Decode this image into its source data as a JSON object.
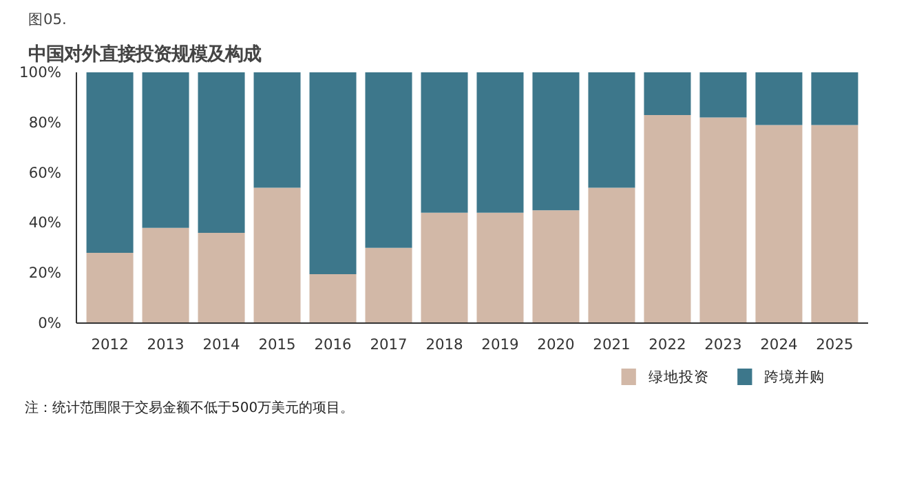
{
  "chart_data": {
    "type": "bar",
    "stacked": true,
    "title": "中国对外直接投资规模及构成",
    "subtitle": "图05.",
    "categories": [
      "2012",
      "2013",
      "2014",
      "2015",
      "2016",
      "2017",
      "2018",
      "2019",
      "2020",
      "2021",
      "2022",
      "2023",
      "2024",
      "2025"
    ],
    "series": [
      {
        "name": "绿地投资",
        "color": "#d2b8a7",
        "values": [
          28,
          38,
          36,
          54,
          19.5,
          30,
          44,
          44,
          45,
          54,
          83,
          82,
          79,
          79
        ]
      },
      {
        "name": "跨境并购",
        "color": "#3d778b",
        "values": [
          72,
          62,
          64,
          46,
          80.5,
          70,
          56,
          56,
          55,
          46,
          17,
          18,
          21,
          21
        ]
      }
    ],
    "ylim": [
      0,
      100
    ],
    "yticks": [
      {
        "value": 0,
        "label": "0%"
      },
      {
        "value": 20,
        "label": "20%"
      },
      {
        "value": 40,
        "label": "40%"
      },
      {
        "value": 60,
        "label": "60%"
      },
      {
        "value": 80,
        "label": "80%"
      },
      {
        "value": 100,
        "label": "100%"
      }
    ],
    "grid": false,
    "legend": "bottom right",
    "annotations": [
      "注：统计范围限于交易金额不低于500万美元的项目。"
    ]
  }
}
